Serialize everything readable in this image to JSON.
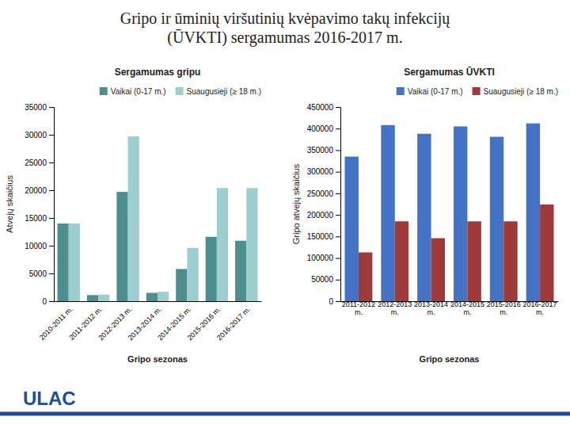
{
  "title": "Gripo ir ūminių viršutinių kvėpavimo takų infekcijų\n(ŪVKTI) sergamumas 2016-2017 m.",
  "annotations": [
    {
      "text": "ULAC",
      "color": "#1f4e99"
    }
  ],
  "chart_data": [
    {
      "type": "bar",
      "title": "Sergamumas gripu",
      "xlabel": "Gripo sezonas",
      "ylabel": "Atvejų skaičius",
      "categories": [
        "2010-2011 m.",
        "2011-2012 m.",
        "2012-2013 m.",
        "2013-2014 m.",
        "2014-2015 m.",
        "2015-2016 m.",
        "2016-2017 m."
      ],
      "series": [
        {
          "name": "Vaikai (0-17 m.)",
          "color": "#4d8f8f",
          "values": [
            14000,
            1100,
            19700,
            1500,
            5800,
            11600,
            10900
          ]
        },
        {
          "name": "Suaugusieji (≥ 18 m.)",
          "color": "#9ecfcf",
          "values": [
            14000,
            1200,
            29700,
            1700,
            9600,
            20400,
            20400
          ]
        }
      ],
      "ylim": [
        0,
        35000
      ],
      "yticks": [
        0,
        5000,
        10000,
        15000,
        20000,
        25000,
        30000,
        35000
      ],
      "grid": false,
      "legend": "upper right"
    },
    {
      "type": "bar",
      "title": "Sergamumas ŪVKTI",
      "xlabel": "Gripo sezonas",
      "ylabel": "Gripo atvejų skaičius",
      "categories": [
        "2011-2012\nm.",
        "2012-2013\nm.",
        "2013-2014\nm.",
        "2014-2015\nm.",
        "2015-2016\nm.",
        "2016-2017\nm."
      ],
      "series": [
        {
          "name": "Vaikai (0-17 m.)",
          "color": "#4472c4",
          "values": [
            335000,
            408000,
            388000,
            405000,
            381000,
            412000
          ]
        },
        {
          "name": "Suaugusieji (≥ 18 m.)",
          "color": "#9e3a3a",
          "values": [
            113000,
            185000,
            146000,
            185000,
            185000,
            224000
          ]
        }
      ],
      "ylim": [
        0,
        450000
      ],
      "yticks": [
        0,
        50000,
        100000,
        150000,
        200000,
        250000,
        300000,
        350000,
        400000,
        450000
      ],
      "grid": false,
      "legend": "upper right"
    }
  ]
}
